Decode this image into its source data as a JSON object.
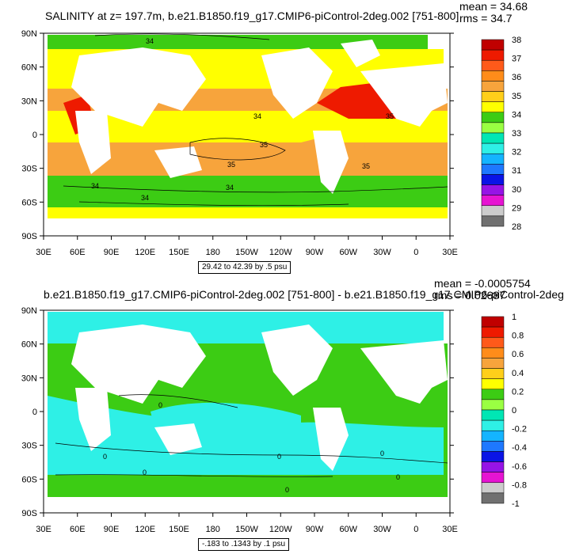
{
  "chart_data": [
    {
      "type": "heatmap",
      "title": "SALINITY at z= 197.7m, b.e21.B1850.f19_g17.CMIP6-piControl-2deg.002 [751-800]",
      "stats": [
        "mean = 34.68",
        "rms = 34.7"
      ],
      "x_ticks": [
        "30E",
        "60E",
        "90E",
        "120E",
        "150E",
        "180",
        "150W",
        "120W",
        "90W",
        "60W",
        "30W",
        "0",
        "30E"
      ],
      "y_ticks": [
        "90N",
        "60N",
        "30N",
        "0",
        "30S",
        "60S",
        "90S"
      ],
      "colorbar_labels": [
        "38",
        "37",
        "36",
        "35",
        "34",
        "33",
        "32",
        "31",
        "30",
        "29",
        "28"
      ],
      "colorbar_colors": [
        "#c00000",
        "#ee1a00",
        "#ff5a1a",
        "#ff8c1a",
        "#f7a43c",
        "#ffcf1a",
        "#ffff00",
        "#3ccc14",
        "#9aff42",
        "#00e6b4",
        "#2ef0e6",
        "#14b4ff",
        "#1e78ff",
        "#0a14e6",
        "#9614e6",
        "#e614d2",
        "#cccccc",
        "#707070"
      ],
      "contour_labels": [
        "34",
        "34",
        "34",
        "34",
        "35",
        "35",
        "35",
        "35",
        "34"
      ],
      "range_info": "29.42 to 42.39 by .5 psu",
      "zlim": [
        28,
        38
      ],
      "units": "psu"
    },
    {
      "type": "heatmap",
      "title": "b.e21.B1850.f19_g17.CMIP6-piControl-2deg.002 [751-800] - b.e21.B1850.f19_g17.CMIP6-piControl-2deg",
      "stats": [
        "mean = -0.0005754",
        "rms = 0.02687"
      ],
      "x_ticks": [
        "30E",
        "60E",
        "90E",
        "120E",
        "150E",
        "180",
        "150W",
        "120W",
        "90W",
        "60W",
        "30W",
        "0",
        "30E"
      ],
      "y_ticks": [
        "90N",
        "60N",
        "30N",
        "0",
        "30S",
        "60S",
        "90S"
      ],
      "colorbar_labels": [
        "1",
        "0.8",
        "0.6",
        "0.4",
        "0.2",
        "0",
        "-0.2",
        "-0.4",
        "-0.6",
        "-0.8",
        "-1"
      ],
      "colorbar_colors": [
        "#c00000",
        "#ee1a00",
        "#ff5a1a",
        "#ff8c1a",
        "#f7a43c",
        "#ffcf1a",
        "#ffff00",
        "#3ccc14",
        "#9aff42",
        "#00e6b4",
        "#2ef0e6",
        "#14b4ff",
        "#1e78ff",
        "#0a14e6",
        "#9614e6",
        "#e614d2",
        "#cccccc",
        "#707070"
      ],
      "contour_labels": [
        "0",
        "0",
        "0",
        "0",
        "0",
        "0",
        "0"
      ],
      "range_info": "-.183 to .1343 by .1 psu",
      "zlim": [
        -1,
        1
      ],
      "units": "psu"
    }
  ]
}
